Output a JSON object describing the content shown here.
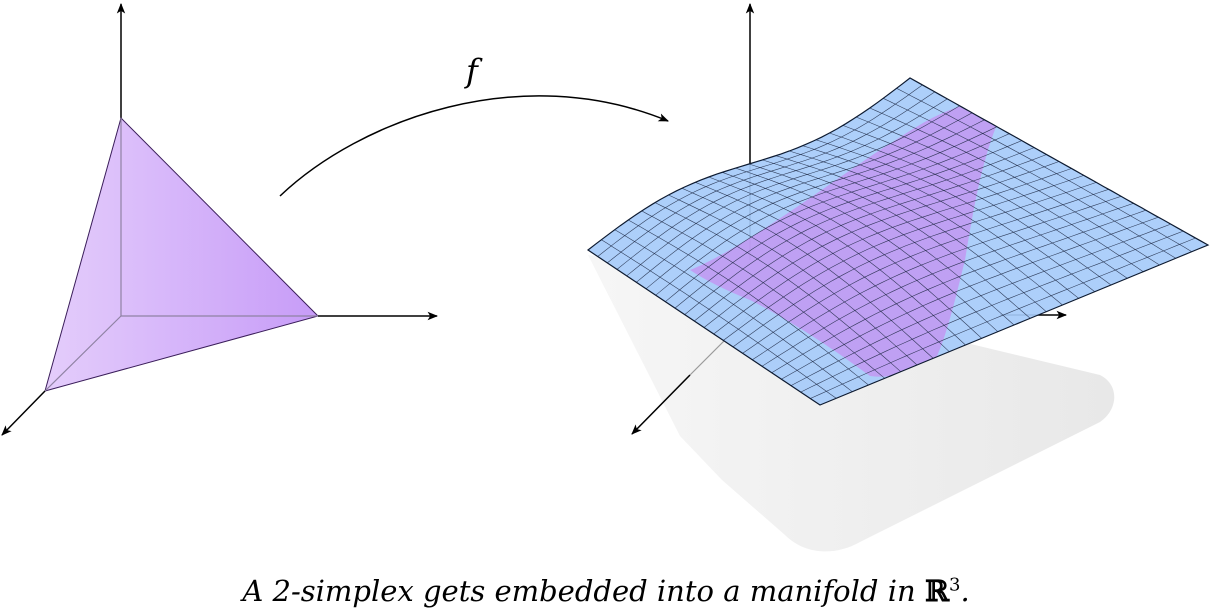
{
  "map_label": "f",
  "caption": {
    "prefix": "A 2-simplex gets embedded into a manifold in ",
    "space": "ℝ",
    "exponent": "3",
    "suffix": "."
  },
  "colors": {
    "simplex_light": "#e4cdfb",
    "simplex_dark": "#c79cf8",
    "surface_fill": "#a6cbfa",
    "surface_region": "#c590f0",
    "mesh_line": "#1a2540",
    "shadow": "#ececec",
    "axis": "#000000"
  }
}
